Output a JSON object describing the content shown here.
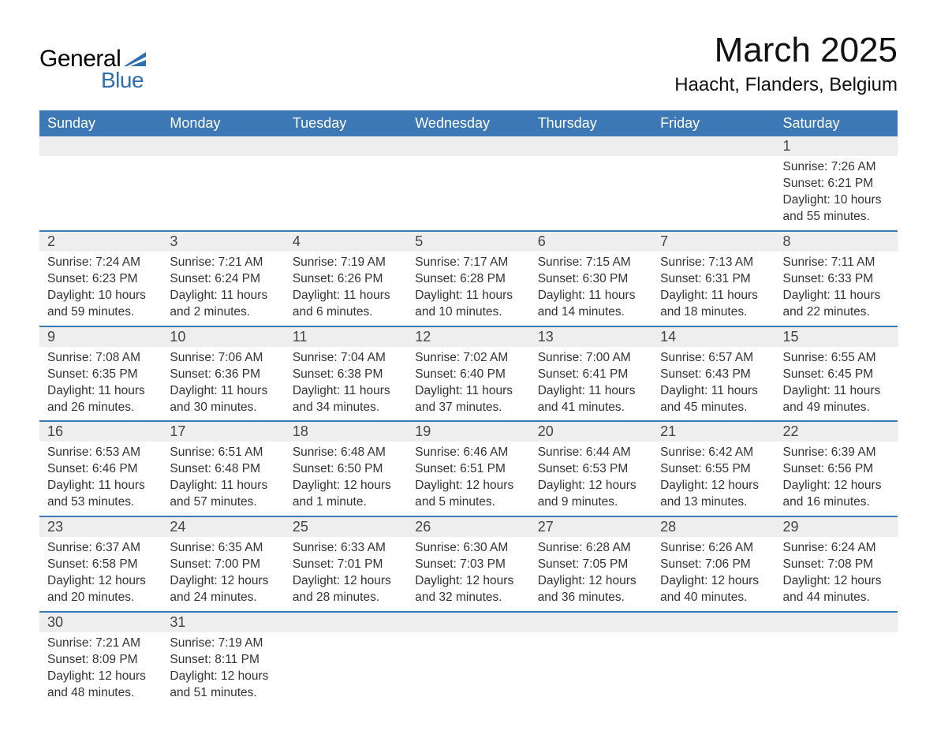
{
  "logo": {
    "word1": "General",
    "word2": "Blue",
    "accent_color": "#2f6fae"
  },
  "title": "March 2025",
  "location": "Haacht, Flanders, Belgium",
  "colors": {
    "header_bg": "#3b78b5",
    "header_text": "#ffffff",
    "daynum_bg": "#eeeeee",
    "row_border": "#3b78b5",
    "body_text": "#333333"
  },
  "day_headers": [
    "Sunday",
    "Monday",
    "Tuesday",
    "Wednesday",
    "Thursday",
    "Friday",
    "Saturday"
  ],
  "weeks": [
    [
      null,
      null,
      null,
      null,
      null,
      null,
      {
        "n": "1",
        "sr": "7:26 AM",
        "ss": "6:21 PM",
        "dl": "10 hours and 55 minutes."
      }
    ],
    [
      {
        "n": "2",
        "sr": "7:24 AM",
        "ss": "6:23 PM",
        "dl": "10 hours and 59 minutes."
      },
      {
        "n": "3",
        "sr": "7:21 AM",
        "ss": "6:24 PM",
        "dl": "11 hours and 2 minutes."
      },
      {
        "n": "4",
        "sr": "7:19 AM",
        "ss": "6:26 PM",
        "dl": "11 hours and 6 minutes."
      },
      {
        "n": "5",
        "sr": "7:17 AM",
        "ss": "6:28 PM",
        "dl": "11 hours and 10 minutes."
      },
      {
        "n": "6",
        "sr": "7:15 AM",
        "ss": "6:30 PM",
        "dl": "11 hours and 14 minutes."
      },
      {
        "n": "7",
        "sr": "7:13 AM",
        "ss": "6:31 PM",
        "dl": "11 hours and 18 minutes."
      },
      {
        "n": "8",
        "sr": "7:11 AM",
        "ss": "6:33 PM",
        "dl": "11 hours and 22 minutes."
      }
    ],
    [
      {
        "n": "9",
        "sr": "7:08 AM",
        "ss": "6:35 PM",
        "dl": "11 hours and 26 minutes."
      },
      {
        "n": "10",
        "sr": "7:06 AM",
        "ss": "6:36 PM",
        "dl": "11 hours and 30 minutes."
      },
      {
        "n": "11",
        "sr": "7:04 AM",
        "ss": "6:38 PM",
        "dl": "11 hours and 34 minutes."
      },
      {
        "n": "12",
        "sr": "7:02 AM",
        "ss": "6:40 PM",
        "dl": "11 hours and 37 minutes."
      },
      {
        "n": "13",
        "sr": "7:00 AM",
        "ss": "6:41 PM",
        "dl": "11 hours and 41 minutes."
      },
      {
        "n": "14",
        "sr": "6:57 AM",
        "ss": "6:43 PM",
        "dl": "11 hours and 45 minutes."
      },
      {
        "n": "15",
        "sr": "6:55 AM",
        "ss": "6:45 PM",
        "dl": "11 hours and 49 minutes."
      }
    ],
    [
      {
        "n": "16",
        "sr": "6:53 AM",
        "ss": "6:46 PM",
        "dl": "11 hours and 53 minutes."
      },
      {
        "n": "17",
        "sr": "6:51 AM",
        "ss": "6:48 PM",
        "dl": "11 hours and 57 minutes."
      },
      {
        "n": "18",
        "sr": "6:48 AM",
        "ss": "6:50 PM",
        "dl": "12 hours and 1 minute."
      },
      {
        "n": "19",
        "sr": "6:46 AM",
        "ss": "6:51 PM",
        "dl": "12 hours and 5 minutes."
      },
      {
        "n": "20",
        "sr": "6:44 AM",
        "ss": "6:53 PM",
        "dl": "12 hours and 9 minutes."
      },
      {
        "n": "21",
        "sr": "6:42 AM",
        "ss": "6:55 PM",
        "dl": "12 hours and 13 minutes."
      },
      {
        "n": "22",
        "sr": "6:39 AM",
        "ss": "6:56 PM",
        "dl": "12 hours and 16 minutes."
      }
    ],
    [
      {
        "n": "23",
        "sr": "6:37 AM",
        "ss": "6:58 PM",
        "dl": "12 hours and 20 minutes."
      },
      {
        "n": "24",
        "sr": "6:35 AM",
        "ss": "7:00 PM",
        "dl": "12 hours and 24 minutes."
      },
      {
        "n": "25",
        "sr": "6:33 AM",
        "ss": "7:01 PM",
        "dl": "12 hours and 28 minutes."
      },
      {
        "n": "26",
        "sr": "6:30 AM",
        "ss": "7:03 PM",
        "dl": "12 hours and 32 minutes."
      },
      {
        "n": "27",
        "sr": "6:28 AM",
        "ss": "7:05 PM",
        "dl": "12 hours and 36 minutes."
      },
      {
        "n": "28",
        "sr": "6:26 AM",
        "ss": "7:06 PM",
        "dl": "12 hours and 40 minutes."
      },
      {
        "n": "29",
        "sr": "6:24 AM",
        "ss": "7:08 PM",
        "dl": "12 hours and 44 minutes."
      }
    ],
    [
      {
        "n": "30",
        "sr": "7:21 AM",
        "ss": "8:09 PM",
        "dl": "12 hours and 48 minutes."
      },
      {
        "n": "31",
        "sr": "7:19 AM",
        "ss": "8:11 PM",
        "dl": "12 hours and 51 minutes."
      },
      null,
      null,
      null,
      null,
      null
    ]
  ],
  "labels": {
    "sunrise": "Sunrise: ",
    "sunset": "Sunset: ",
    "daylight": "Daylight: "
  }
}
